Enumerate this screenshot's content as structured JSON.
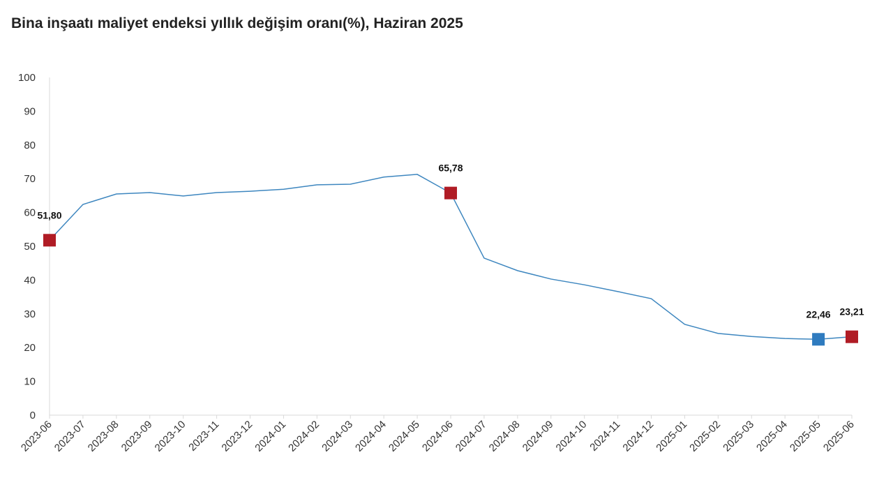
{
  "chart_data": {
    "type": "line",
    "title": "Bina inşaatı maliyet endeksi yıllık değişim oranı(%), Haziran 2025",
    "categories": [
      "2023-06",
      "2023-07",
      "2023-08",
      "2023-09",
      "2023-10",
      "2023-11",
      "2023-12",
      "2024-01",
      "2024-02",
      "2024-03",
      "2024-04",
      "2024-05",
      "2024-06",
      "2024-07",
      "2024-08",
      "2024-09",
      "2024-10",
      "2024-11",
      "2024-12",
      "2025-01",
      "2025-02",
      "2025-03",
      "2025-04",
      "2025-05",
      "2025-06"
    ],
    "series": [
      {
        "color": "#3d86bf",
        "values": [
          51.8,
          62.4,
          65.5,
          65.9,
          64.9,
          65.9,
          66.3,
          66.9,
          68.2,
          68.4,
          70.5,
          71.3,
          65.78,
          46.5,
          42.8,
          40.3,
          38.6,
          36.6,
          34.5,
          26.9,
          24.2,
          23.3,
          22.7,
          22.46,
          23.21
        ],
        "value_labels": [
          "51,80",
          null,
          null,
          null,
          null,
          null,
          null,
          null,
          null,
          null,
          null,
          null,
          "65,78",
          null,
          null,
          null,
          null,
          null,
          null,
          null,
          null,
          null,
          null,
          "22,46",
          "23,21"
        ],
        "marker_colors": [
          "#b01c25",
          null,
          null,
          null,
          null,
          null,
          null,
          null,
          null,
          null,
          null,
          null,
          "#b01c25",
          null,
          null,
          null,
          null,
          null,
          null,
          null,
          null,
          null,
          null,
          "#2f7bbf",
          "#b01c25"
        ]
      }
    ],
    "ylim": [
      0,
      100
    ],
    "yticks": [
      0,
      10,
      20,
      30,
      40,
      50,
      60,
      70,
      80,
      90,
      100
    ],
    "grid": false
  }
}
